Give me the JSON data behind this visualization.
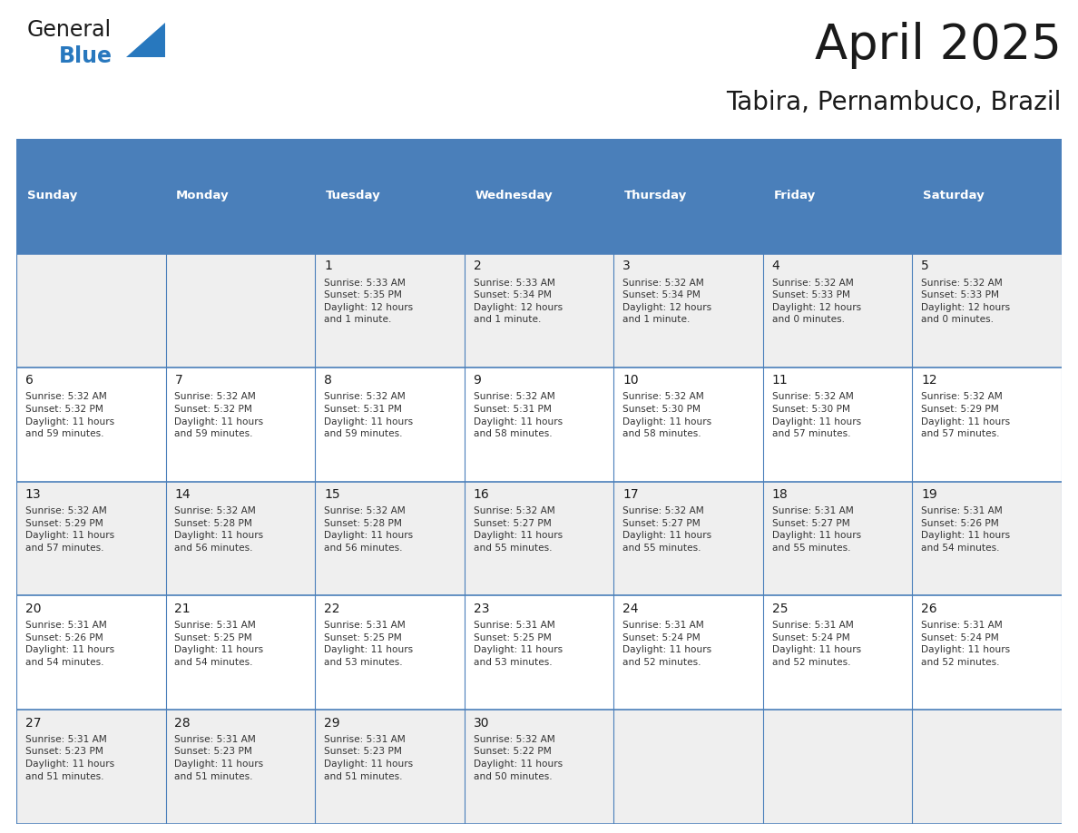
{
  "title": "April 2025",
  "subtitle": "Tabira, Pernambuco, Brazil",
  "header_bg": "#4a7fba",
  "header_text": "#ffffff",
  "row_bg_odd": "#efefef",
  "row_bg_even": "#ffffff",
  "border_color": "#4a7fba",
  "text_color": "#333333",
  "days_of_week": [
    "Sunday",
    "Monday",
    "Tuesday",
    "Wednesday",
    "Thursday",
    "Friday",
    "Saturday"
  ],
  "cell_data": [
    [
      "",
      "",
      "1\nSunrise: 5:33 AM\nSunset: 5:35 PM\nDaylight: 12 hours\nand 1 minute.",
      "2\nSunrise: 5:33 AM\nSunset: 5:34 PM\nDaylight: 12 hours\nand 1 minute.",
      "3\nSunrise: 5:32 AM\nSunset: 5:34 PM\nDaylight: 12 hours\nand 1 minute.",
      "4\nSunrise: 5:32 AM\nSunset: 5:33 PM\nDaylight: 12 hours\nand 0 minutes.",
      "5\nSunrise: 5:32 AM\nSunset: 5:33 PM\nDaylight: 12 hours\nand 0 minutes."
    ],
    [
      "6\nSunrise: 5:32 AM\nSunset: 5:32 PM\nDaylight: 11 hours\nand 59 minutes.",
      "7\nSunrise: 5:32 AM\nSunset: 5:32 PM\nDaylight: 11 hours\nand 59 minutes.",
      "8\nSunrise: 5:32 AM\nSunset: 5:31 PM\nDaylight: 11 hours\nand 59 minutes.",
      "9\nSunrise: 5:32 AM\nSunset: 5:31 PM\nDaylight: 11 hours\nand 58 minutes.",
      "10\nSunrise: 5:32 AM\nSunset: 5:30 PM\nDaylight: 11 hours\nand 58 minutes.",
      "11\nSunrise: 5:32 AM\nSunset: 5:30 PM\nDaylight: 11 hours\nand 57 minutes.",
      "12\nSunrise: 5:32 AM\nSunset: 5:29 PM\nDaylight: 11 hours\nand 57 minutes."
    ],
    [
      "13\nSunrise: 5:32 AM\nSunset: 5:29 PM\nDaylight: 11 hours\nand 57 minutes.",
      "14\nSunrise: 5:32 AM\nSunset: 5:28 PM\nDaylight: 11 hours\nand 56 minutes.",
      "15\nSunrise: 5:32 AM\nSunset: 5:28 PM\nDaylight: 11 hours\nand 56 minutes.",
      "16\nSunrise: 5:32 AM\nSunset: 5:27 PM\nDaylight: 11 hours\nand 55 minutes.",
      "17\nSunrise: 5:32 AM\nSunset: 5:27 PM\nDaylight: 11 hours\nand 55 minutes.",
      "18\nSunrise: 5:31 AM\nSunset: 5:27 PM\nDaylight: 11 hours\nand 55 minutes.",
      "19\nSunrise: 5:31 AM\nSunset: 5:26 PM\nDaylight: 11 hours\nand 54 minutes."
    ],
    [
      "20\nSunrise: 5:31 AM\nSunset: 5:26 PM\nDaylight: 11 hours\nand 54 minutes.",
      "21\nSunrise: 5:31 AM\nSunset: 5:25 PM\nDaylight: 11 hours\nand 54 minutes.",
      "22\nSunrise: 5:31 AM\nSunset: 5:25 PM\nDaylight: 11 hours\nand 53 minutes.",
      "23\nSunrise: 5:31 AM\nSunset: 5:25 PM\nDaylight: 11 hours\nand 53 minutes.",
      "24\nSunrise: 5:31 AM\nSunset: 5:24 PM\nDaylight: 11 hours\nand 52 minutes.",
      "25\nSunrise: 5:31 AM\nSunset: 5:24 PM\nDaylight: 11 hours\nand 52 minutes.",
      "26\nSunrise: 5:31 AM\nSunset: 5:24 PM\nDaylight: 11 hours\nand 52 minutes."
    ],
    [
      "27\nSunrise: 5:31 AM\nSunset: 5:23 PM\nDaylight: 11 hours\nand 51 minutes.",
      "28\nSunrise: 5:31 AM\nSunset: 5:23 PM\nDaylight: 11 hours\nand 51 minutes.",
      "29\nSunrise: 5:31 AM\nSunset: 5:23 PM\nDaylight: 11 hours\nand 51 minutes.",
      "30\nSunrise: 5:32 AM\nSunset: 5:22 PM\nDaylight: 11 hours\nand 50 minutes.",
      "",
      "",
      ""
    ]
  ],
  "logo_text_general": "General",
  "logo_text_blue": "Blue",
  "logo_color_general": "#1a1a1a",
  "logo_color_blue": "#2878be",
  "logo_triangle_color": "#2878be",
  "fig_width": 11.88,
  "fig_height": 9.18,
  "dpi": 100
}
